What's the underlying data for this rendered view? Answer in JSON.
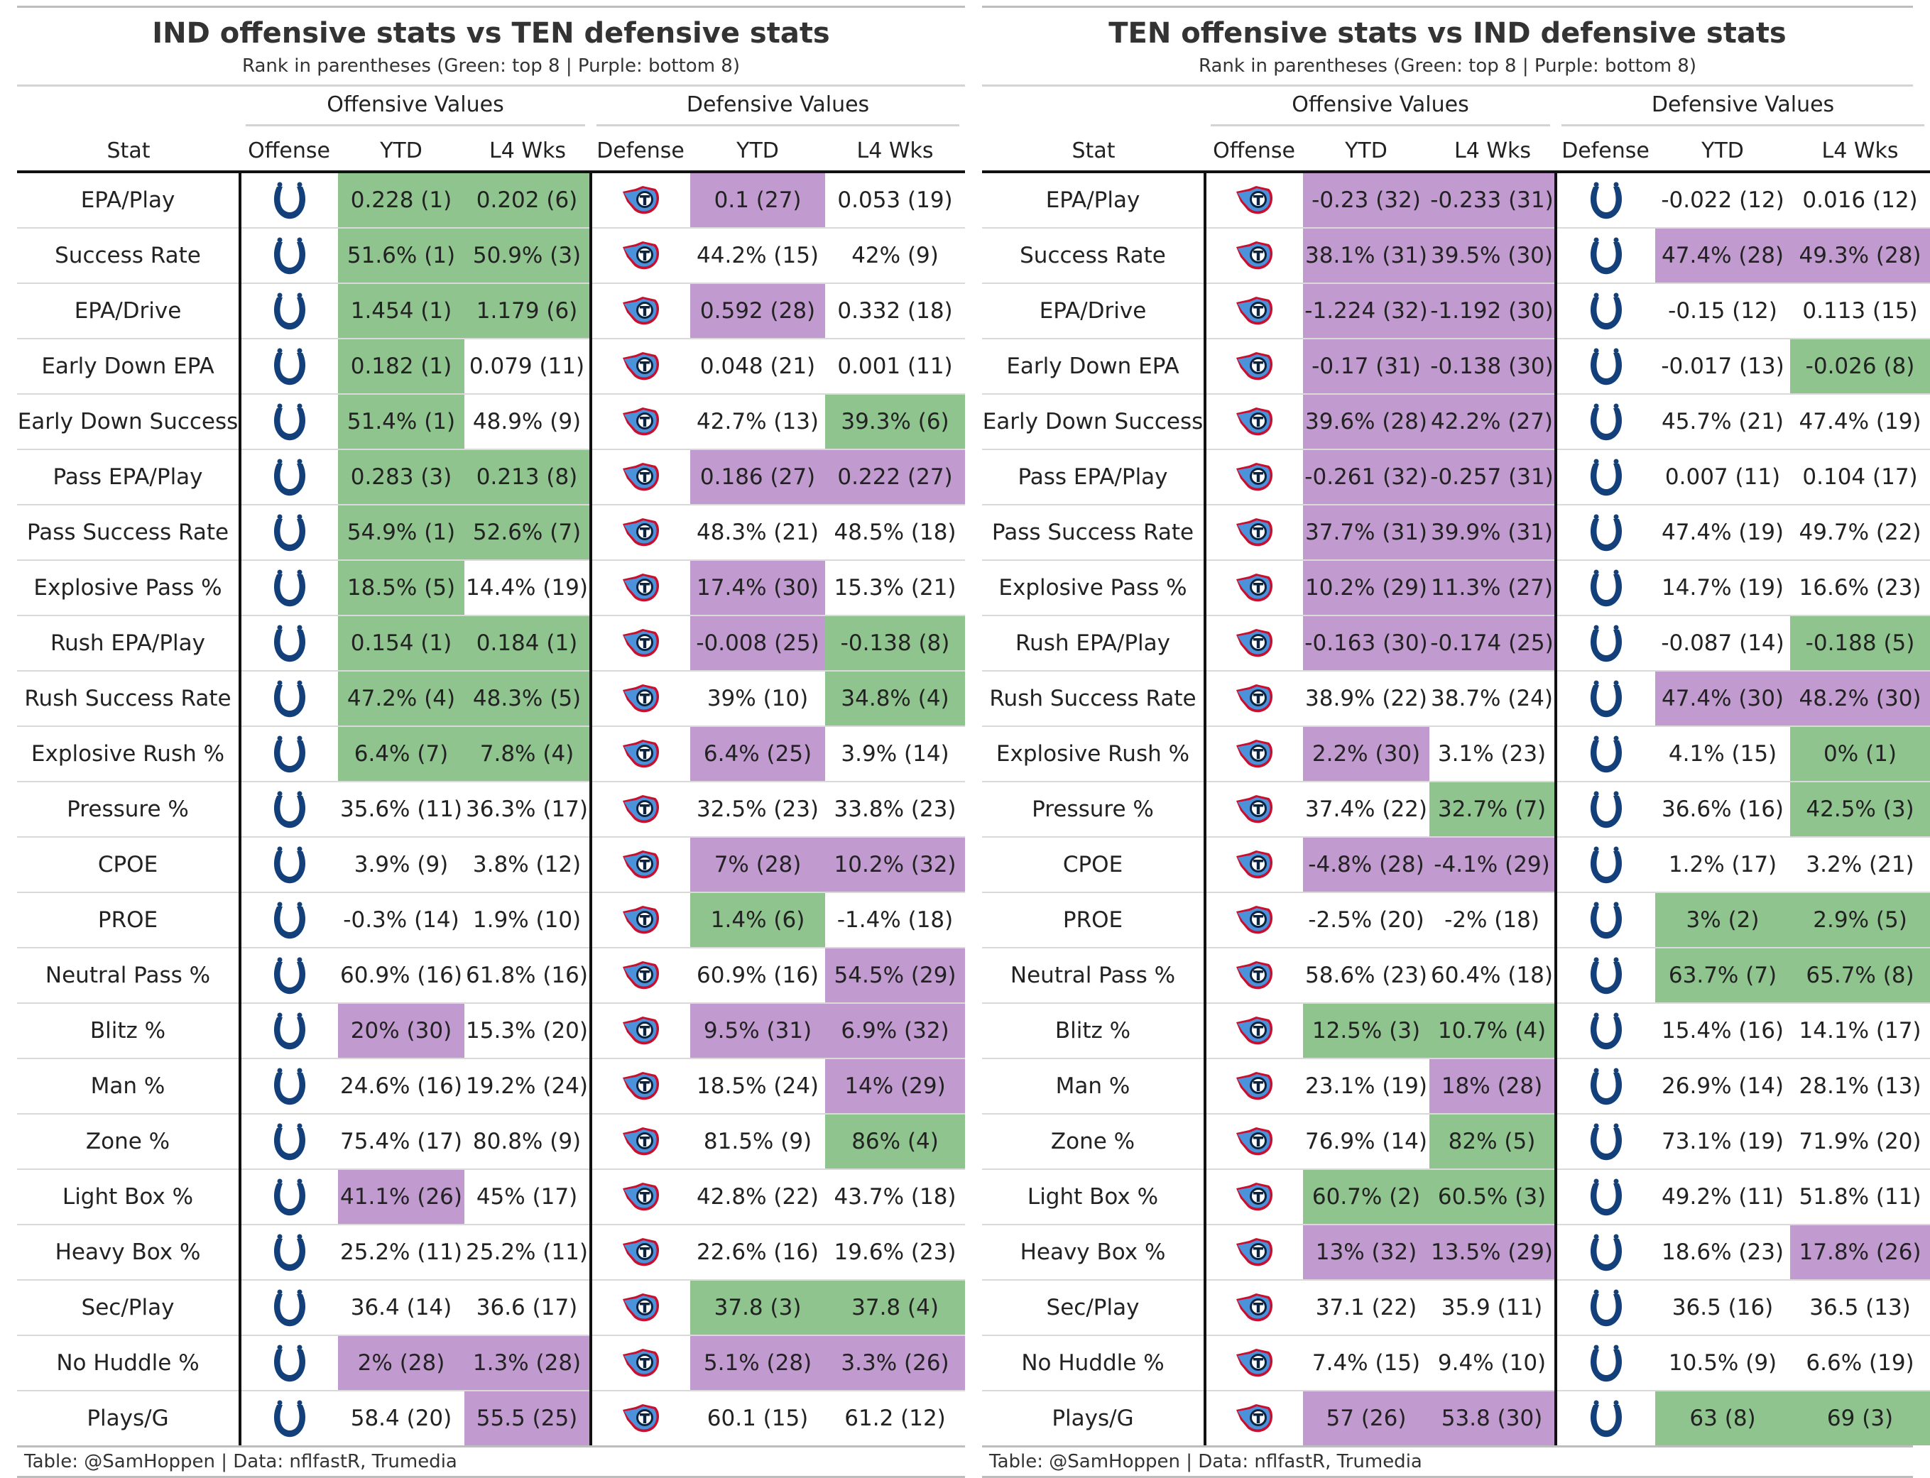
{
  "footer": "Table: @SamHoppen | Data: nflfastR, Trumedia",
  "colors": {
    "green": "#8fc48f",
    "purple": "#c19bcf",
    "colts_blue": "#13407a",
    "titans_navy": "#0c2340",
    "titans_blue": "#4b92db",
    "titans_red": "#c8102e"
  },
  "headers": {
    "offensive_values": "Offensive Values",
    "defensive_values": "Defensive Values",
    "stat": "Stat",
    "offense": "Offense",
    "defense": "Defense",
    "ytd": "YTD",
    "l4": "L4 Wks"
  },
  "tables": [
    {
      "title": "IND offensive stats vs TEN defensive stats",
      "subtitle": "Rank in parentheses (Green: top 8 | Purple: bottom 8)",
      "offense_team": "IND",
      "offense_logo": "horseshoe-icon",
      "defense_team": "TEN",
      "defense_logo": "titans-icon",
      "rows": [
        {
          "stat": "EPA/Play",
          "off_ytd": "0.228 (1)",
          "off_ytd_c": "g",
          "off_l4": "0.202 (6)",
          "off_l4_c": "g",
          "def_ytd": "0.1 (27)",
          "def_ytd_c": "p",
          "def_l4": "0.053 (19)",
          "def_l4_c": ""
        },
        {
          "stat": "Success Rate",
          "off_ytd": "51.6% (1)",
          "off_ytd_c": "g",
          "off_l4": "50.9% (3)",
          "off_l4_c": "g",
          "def_ytd": "44.2% (15)",
          "def_ytd_c": "",
          "def_l4": "42% (9)",
          "def_l4_c": ""
        },
        {
          "stat": "EPA/Drive",
          "off_ytd": "1.454 (1)",
          "off_ytd_c": "g",
          "off_l4": "1.179 (6)",
          "off_l4_c": "g",
          "def_ytd": "0.592 (28)",
          "def_ytd_c": "p",
          "def_l4": "0.332 (18)",
          "def_l4_c": ""
        },
        {
          "stat": "Early Down EPA",
          "off_ytd": "0.182 (1)",
          "off_ytd_c": "g",
          "off_l4": "0.079 (11)",
          "off_l4_c": "",
          "def_ytd": "0.048 (21)",
          "def_ytd_c": "",
          "def_l4": "0.001 (11)",
          "def_l4_c": ""
        },
        {
          "stat": "Early Down Success",
          "off_ytd": "51.4% (1)",
          "off_ytd_c": "g",
          "off_l4": "48.9% (9)",
          "off_l4_c": "",
          "def_ytd": "42.7% (13)",
          "def_ytd_c": "",
          "def_l4": "39.3% (6)",
          "def_l4_c": "g"
        },
        {
          "stat": "Pass EPA/Play",
          "off_ytd": "0.283 (3)",
          "off_ytd_c": "g",
          "off_l4": "0.213 (8)",
          "off_l4_c": "g",
          "def_ytd": "0.186 (27)",
          "def_ytd_c": "p",
          "def_l4": "0.222 (27)",
          "def_l4_c": "p"
        },
        {
          "stat": "Pass Success Rate",
          "off_ytd": "54.9% (1)",
          "off_ytd_c": "g",
          "off_l4": "52.6% (7)",
          "off_l4_c": "g",
          "def_ytd": "48.3% (21)",
          "def_ytd_c": "",
          "def_l4": "48.5% (18)",
          "def_l4_c": ""
        },
        {
          "stat": "Explosive Pass %",
          "off_ytd": "18.5% (5)",
          "off_ytd_c": "g",
          "off_l4": "14.4% (19)",
          "off_l4_c": "",
          "def_ytd": "17.4% (30)",
          "def_ytd_c": "p",
          "def_l4": "15.3% (21)",
          "def_l4_c": ""
        },
        {
          "stat": "Rush EPA/Play",
          "off_ytd": "0.154 (1)",
          "off_ytd_c": "g",
          "off_l4": "0.184 (1)",
          "off_l4_c": "g",
          "def_ytd": "-0.008 (25)",
          "def_ytd_c": "p",
          "def_l4": "-0.138 (8)",
          "def_l4_c": "g"
        },
        {
          "stat": "Rush Success Rate",
          "off_ytd": "47.2% (4)",
          "off_ytd_c": "g",
          "off_l4": "48.3% (5)",
          "off_l4_c": "g",
          "def_ytd": "39% (10)",
          "def_ytd_c": "",
          "def_l4": "34.8% (4)",
          "def_l4_c": "g"
        },
        {
          "stat": "Explosive Rush %",
          "off_ytd": "6.4% (7)",
          "off_ytd_c": "g",
          "off_l4": "7.8% (4)",
          "off_l4_c": "g",
          "def_ytd": "6.4% (25)",
          "def_ytd_c": "p",
          "def_l4": "3.9% (14)",
          "def_l4_c": ""
        },
        {
          "stat": "Pressure %",
          "off_ytd": "35.6% (11)",
          "off_ytd_c": "",
          "off_l4": "36.3% (17)",
          "off_l4_c": "",
          "def_ytd": "32.5% (23)",
          "def_ytd_c": "",
          "def_l4": "33.8% (23)",
          "def_l4_c": ""
        },
        {
          "stat": "CPOE",
          "off_ytd": "3.9% (9)",
          "off_ytd_c": "",
          "off_l4": "3.8% (12)",
          "off_l4_c": "",
          "def_ytd": "7% (28)",
          "def_ytd_c": "p",
          "def_l4": "10.2% (32)",
          "def_l4_c": "p"
        },
        {
          "stat": "PROE",
          "off_ytd": "-0.3% (14)",
          "off_ytd_c": "",
          "off_l4": "1.9% (10)",
          "off_l4_c": "",
          "def_ytd": "1.4% (6)",
          "def_ytd_c": "g",
          "def_l4": "-1.4% (18)",
          "def_l4_c": ""
        },
        {
          "stat": "Neutral Pass %",
          "off_ytd": "60.9% (16)",
          "off_ytd_c": "",
          "off_l4": "61.8% (16)",
          "off_l4_c": "",
          "def_ytd": "60.9% (16)",
          "def_ytd_c": "",
          "def_l4": "54.5% (29)",
          "def_l4_c": "p"
        },
        {
          "stat": "Blitz %",
          "off_ytd": "20% (30)",
          "off_ytd_c": "p",
          "off_l4": "15.3% (20)",
          "off_l4_c": "",
          "def_ytd": "9.5% (31)",
          "def_ytd_c": "p",
          "def_l4": "6.9% (32)",
          "def_l4_c": "p"
        },
        {
          "stat": "Man %",
          "off_ytd": "24.6% (16)",
          "off_ytd_c": "",
          "off_l4": "19.2% (24)",
          "off_l4_c": "",
          "def_ytd": "18.5% (24)",
          "def_ytd_c": "",
          "def_l4": "14% (29)",
          "def_l4_c": "p"
        },
        {
          "stat": "Zone %",
          "off_ytd": "75.4% (17)",
          "off_ytd_c": "",
          "off_l4": "80.8% (9)",
          "off_l4_c": "",
          "def_ytd": "81.5% (9)",
          "def_ytd_c": "",
          "def_l4": "86% (4)",
          "def_l4_c": "g"
        },
        {
          "stat": "Light Box %",
          "off_ytd": "41.1% (26)",
          "off_ytd_c": "p",
          "off_l4": "45% (17)",
          "off_l4_c": "",
          "def_ytd": "42.8% (22)",
          "def_ytd_c": "",
          "def_l4": "43.7% (18)",
          "def_l4_c": ""
        },
        {
          "stat": "Heavy Box %",
          "off_ytd": "25.2% (11)",
          "off_ytd_c": "",
          "off_l4": "25.2% (11)",
          "off_l4_c": "",
          "def_ytd": "22.6% (16)",
          "def_ytd_c": "",
          "def_l4": "19.6% (23)",
          "def_l4_c": ""
        },
        {
          "stat": "Sec/Play",
          "off_ytd": "36.4 (14)",
          "off_ytd_c": "",
          "off_l4": "36.6 (17)",
          "off_l4_c": "",
          "def_ytd": "37.8 (3)",
          "def_ytd_c": "g",
          "def_l4": "37.8 (4)",
          "def_l4_c": "g"
        },
        {
          "stat": "No Huddle %",
          "off_ytd": "2% (28)",
          "off_ytd_c": "p",
          "off_l4": "1.3% (28)",
          "off_l4_c": "p",
          "def_ytd": "5.1% (28)",
          "def_ytd_c": "p",
          "def_l4": "3.3% (26)",
          "def_l4_c": "p"
        },
        {
          "stat": "Plays/G",
          "off_ytd": "58.4 (20)",
          "off_ytd_c": "",
          "off_l4": "55.5 (25)",
          "off_l4_c": "p",
          "def_ytd": "60.1 (15)",
          "def_ytd_c": "",
          "def_l4": "61.2 (12)",
          "def_l4_c": ""
        }
      ]
    },
    {
      "title": "TEN offensive stats vs IND defensive stats",
      "subtitle": "Rank in parentheses (Green: top 8 | Purple: bottom 8)",
      "offense_team": "TEN",
      "offense_logo": "titans-icon",
      "defense_team": "IND",
      "defense_logo": "horseshoe-icon",
      "rows": [
        {
          "stat": "EPA/Play",
          "off_ytd": "-0.23 (32)",
          "off_ytd_c": "p",
          "off_l4": "-0.233 (31)",
          "off_l4_c": "p",
          "def_ytd": "-0.022 (12)",
          "def_ytd_c": "",
          "def_l4": "0.016 (12)",
          "def_l4_c": ""
        },
        {
          "stat": "Success Rate",
          "off_ytd": "38.1% (31)",
          "off_ytd_c": "p",
          "off_l4": "39.5% (30)",
          "off_l4_c": "p",
          "def_ytd": "47.4% (28)",
          "def_ytd_c": "p",
          "def_l4": "49.3% (28)",
          "def_l4_c": "p"
        },
        {
          "stat": "EPA/Drive",
          "off_ytd": "-1.224 (32)",
          "off_ytd_c": "p",
          "off_l4": "-1.192 (30)",
          "off_l4_c": "p",
          "def_ytd": "-0.15 (12)",
          "def_ytd_c": "",
          "def_l4": "0.113 (15)",
          "def_l4_c": ""
        },
        {
          "stat": "Early Down EPA",
          "off_ytd": "-0.17 (31)",
          "off_ytd_c": "p",
          "off_l4": "-0.138 (30)",
          "off_l4_c": "p",
          "def_ytd": "-0.017 (13)",
          "def_ytd_c": "",
          "def_l4": "-0.026 (8)",
          "def_l4_c": "g"
        },
        {
          "stat": "Early Down Success",
          "off_ytd": "39.6% (28)",
          "off_ytd_c": "p",
          "off_l4": "42.2% (27)",
          "off_l4_c": "p",
          "def_ytd": "45.7% (21)",
          "def_ytd_c": "",
          "def_l4": "47.4% (19)",
          "def_l4_c": ""
        },
        {
          "stat": "Pass EPA/Play",
          "off_ytd": "-0.261 (32)",
          "off_ytd_c": "p",
          "off_l4": "-0.257 (31)",
          "off_l4_c": "p",
          "def_ytd": "0.007 (11)",
          "def_ytd_c": "",
          "def_l4": "0.104 (17)",
          "def_l4_c": ""
        },
        {
          "stat": "Pass Success Rate",
          "off_ytd": "37.7% (31)",
          "off_ytd_c": "p",
          "off_l4": "39.9% (31)",
          "off_l4_c": "p",
          "def_ytd": "47.4% (19)",
          "def_ytd_c": "",
          "def_l4": "49.7% (22)",
          "def_l4_c": ""
        },
        {
          "stat": "Explosive Pass %",
          "off_ytd": "10.2% (29)",
          "off_ytd_c": "p",
          "off_l4": "11.3% (27)",
          "off_l4_c": "p",
          "def_ytd": "14.7% (19)",
          "def_ytd_c": "",
          "def_l4": "16.6% (23)",
          "def_l4_c": ""
        },
        {
          "stat": "Rush EPA/Play",
          "off_ytd": "-0.163 (30)",
          "off_ytd_c": "p",
          "off_l4": "-0.174 (25)",
          "off_l4_c": "p",
          "def_ytd": "-0.087 (14)",
          "def_ytd_c": "",
          "def_l4": "-0.188 (5)",
          "def_l4_c": "g"
        },
        {
          "stat": "Rush Success Rate",
          "off_ytd": "38.9% (22)",
          "off_ytd_c": "",
          "off_l4": "38.7% (24)",
          "off_l4_c": "",
          "def_ytd": "47.4% (30)",
          "def_ytd_c": "p",
          "def_l4": "48.2% (30)",
          "def_l4_c": "p"
        },
        {
          "stat": "Explosive Rush %",
          "off_ytd": "2.2% (30)",
          "off_ytd_c": "p",
          "off_l4": "3.1% (23)",
          "off_l4_c": "",
          "def_ytd": "4.1% (15)",
          "def_ytd_c": "",
          "def_l4": "0% (1)",
          "def_l4_c": "g"
        },
        {
          "stat": "Pressure %",
          "off_ytd": "37.4% (22)",
          "off_ytd_c": "",
          "off_l4": "32.7% (7)",
          "off_l4_c": "g",
          "def_ytd": "36.6% (16)",
          "def_ytd_c": "",
          "def_l4": "42.5% (3)",
          "def_l4_c": "g"
        },
        {
          "stat": "CPOE",
          "off_ytd": "-4.8% (28)",
          "off_ytd_c": "p",
          "off_l4": "-4.1% (29)",
          "off_l4_c": "p",
          "def_ytd": "1.2% (17)",
          "def_ytd_c": "",
          "def_l4": "3.2% (21)",
          "def_l4_c": ""
        },
        {
          "stat": "PROE",
          "off_ytd": "-2.5% (20)",
          "off_ytd_c": "",
          "off_l4": "-2% (18)",
          "off_l4_c": "",
          "def_ytd": "3% (2)",
          "def_ytd_c": "g",
          "def_l4": "2.9% (5)",
          "def_l4_c": "g"
        },
        {
          "stat": "Neutral Pass %",
          "off_ytd": "58.6% (23)",
          "off_ytd_c": "",
          "off_l4": "60.4% (18)",
          "off_l4_c": "",
          "def_ytd": "63.7% (7)",
          "def_ytd_c": "g",
          "def_l4": "65.7% (8)",
          "def_l4_c": "g"
        },
        {
          "stat": "Blitz %",
          "off_ytd": "12.5% (3)",
          "off_ytd_c": "g",
          "off_l4": "10.7% (4)",
          "off_l4_c": "g",
          "def_ytd": "15.4% (16)",
          "def_ytd_c": "",
          "def_l4": "14.1% (17)",
          "def_l4_c": ""
        },
        {
          "stat": "Man %",
          "off_ytd": "23.1% (19)",
          "off_ytd_c": "",
          "off_l4": "18% (28)",
          "off_l4_c": "p",
          "def_ytd": "26.9% (14)",
          "def_ytd_c": "",
          "def_l4": "28.1% (13)",
          "def_l4_c": ""
        },
        {
          "stat": "Zone %",
          "off_ytd": "76.9% (14)",
          "off_ytd_c": "",
          "off_l4": "82% (5)",
          "off_l4_c": "g",
          "def_ytd": "73.1% (19)",
          "def_ytd_c": "",
          "def_l4": "71.9% (20)",
          "def_l4_c": ""
        },
        {
          "stat": "Light Box %",
          "off_ytd": "60.7% (2)",
          "off_ytd_c": "g",
          "off_l4": "60.5% (3)",
          "off_l4_c": "g",
          "def_ytd": "49.2% (11)",
          "def_ytd_c": "",
          "def_l4": "51.8% (11)",
          "def_l4_c": ""
        },
        {
          "stat": "Heavy Box %",
          "off_ytd": "13% (32)",
          "off_ytd_c": "p",
          "off_l4": "13.5% (29)",
          "off_l4_c": "p",
          "def_ytd": "18.6% (23)",
          "def_ytd_c": "",
          "def_l4": "17.8% (26)",
          "def_l4_c": "p"
        },
        {
          "stat": "Sec/Play",
          "off_ytd": "37.1 (22)",
          "off_ytd_c": "",
          "off_l4": "35.9 (11)",
          "off_l4_c": "",
          "def_ytd": "36.5 (16)",
          "def_ytd_c": "",
          "def_l4": "36.5 (13)",
          "def_l4_c": ""
        },
        {
          "stat": "No Huddle %",
          "off_ytd": "7.4% (15)",
          "off_ytd_c": "",
          "off_l4": "9.4% (10)",
          "off_l4_c": "",
          "def_ytd": "10.5% (9)",
          "def_ytd_c": "",
          "def_l4": "6.6% (19)",
          "def_l4_c": ""
        },
        {
          "stat": "Plays/G",
          "off_ytd": "57 (26)",
          "off_ytd_c": "p",
          "off_l4": "53.8 (30)",
          "off_l4_c": "p",
          "def_ytd": "63 (8)",
          "def_ytd_c": "g",
          "def_l4": "69 (3)",
          "def_l4_c": "g"
        }
      ]
    }
  ]
}
